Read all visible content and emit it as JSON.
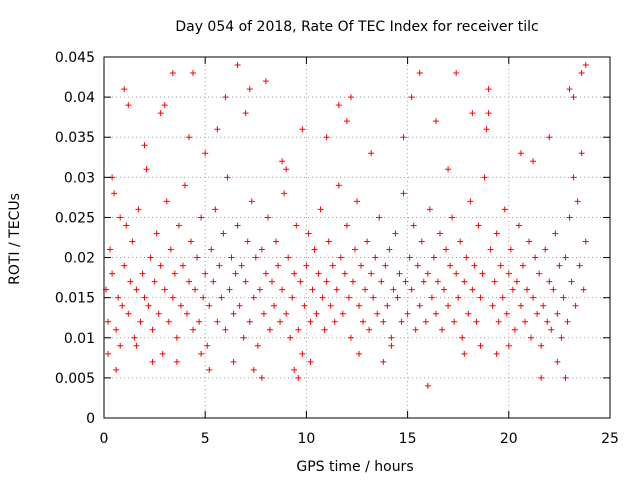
{
  "chart_data": {
    "type": "scatter",
    "title": "Day 054 of 2018, Rate Of TEC Index for receiver tilc",
    "xlabel": "GPS time / hours",
    "ylabel": "ROTI / TECUs",
    "xlim": [
      0,
      25
    ],
    "ylim": [
      0,
      0.045
    ],
    "xticks": [
      0,
      5,
      10,
      15,
      20,
      25
    ],
    "xtick_labels": [
      "0",
      "5",
      "10",
      "15",
      "20",
      "25"
    ],
    "yticks": [
      0,
      0.005,
      0.01,
      0.015,
      0.02,
      0.025,
      0.03,
      0.035,
      0.04,
      0.045
    ],
    "ytick_labels": [
      "0",
      "0.005",
      "0.01",
      "0.015",
      "0.02",
      "0.025",
      "0.03",
      "0.035",
      "0.04",
      "0.045"
    ],
    "grid": true,
    "marker": "+",
    "color": "#ff0000",
    "series": [
      {
        "name": "ROTI",
        "points": [
          [
            0.1,
            0.016
          ],
          [
            0.2,
            0.012
          ],
          [
            0.3,
            0.021
          ],
          [
            0.4,
            0.018
          ],
          [
            0.5,
            0.028
          ],
          [
            0.6,
            0.011
          ],
          [
            0.7,
            0.015
          ],
          [
            0.8,
            0.009
          ],
          [
            0.9,
            0.014
          ],
          [
            1.0,
            0.019
          ],
          [
            1.1,
            0.024
          ],
          [
            1.2,
            0.013
          ],
          [
            1.3,
            0.017
          ],
          [
            1.4,
            0.022
          ],
          [
            1.5,
            0.01
          ],
          [
            1.6,
            0.016
          ],
          [
            1.7,
            0.026
          ],
          [
            1.8,
            0.012
          ],
          [
            1.9,
            0.018
          ],
          [
            2.0,
            0.015
          ],
          [
            2.1,
            0.031
          ],
          [
            2.2,
            0.014
          ],
          [
            2.3,
            0.02
          ],
          [
            2.4,
            0.011
          ],
          [
            2.5,
            0.017
          ],
          [
            2.6,
            0.023
          ],
          [
            2.7,
            0.013
          ],
          [
            2.8,
            0.019
          ],
          [
            2.9,
            0.008
          ],
          [
            3.0,
            0.016
          ],
          [
            3.1,
            0.027
          ],
          [
            3.2,
            0.012
          ],
          [
            3.3,
            0.021
          ],
          [
            3.4,
            0.015
          ],
          [
            3.5,
            0.018
          ],
          [
            3.6,
            0.01
          ],
          [
            3.7,
            0.024
          ],
          [
            3.8,
            0.014
          ],
          [
            3.9,
            0.019
          ],
          [
            4.0,
            0.029
          ],
          [
            4.1,
            0.013
          ],
          [
            4.2,
            0.017
          ],
          [
            4.3,
            0.022
          ],
          [
            4.4,
            0.011
          ],
          [
            4.5,
            0.016
          ],
          [
            4.6,
            0.02
          ],
          [
            4.7,
            0.012
          ],
          [
            4.8,
            0.025
          ],
          [
            4.9,
            0.015
          ],
          [
            5.0,
            0.018
          ],
          [
            5.1,
            0.009
          ],
          [
            5.2,
            0.014
          ],
          [
            5.3,
            0.021
          ],
          [
            5.4,
            0.017
          ],
          [
            5.5,
            0.026
          ],
          [
            5.6,
            0.012
          ],
          [
            5.7,
            0.019
          ],
          [
            5.8,
            0.015
          ],
          [
            5.9,
            0.023
          ],
          [
            6.0,
            0.011
          ],
          [
            6.1,
            0.03
          ],
          [
            6.2,
            0.016
          ],
          [
            6.3,
            0.02
          ],
          [
            6.4,
            0.013
          ],
          [
            6.5,
            0.018
          ],
          [
            6.6,
            0.024
          ],
          [
            6.7,
            0.014
          ],
          [
            6.8,
            0.019
          ],
          [
            6.9,
            0.01
          ],
          [
            7.0,
            0.017
          ],
          [
            7.1,
            0.022
          ],
          [
            7.2,
            0.012
          ],
          [
            7.3,
            0.027
          ],
          [
            7.4,
            0.015
          ],
          [
            7.5,
            0.02
          ],
          [
            7.6,
            0.009
          ],
          [
            7.7,
            0.016
          ],
          [
            7.8,
            0.021
          ],
          [
            7.9,
            0.013
          ],
          [
            8.0,
            0.018
          ],
          [
            8.1,
            0.025
          ],
          [
            8.2,
            0.011
          ],
          [
            8.3,
            0.017
          ],
          [
            8.4,
            0.014
          ],
          [
            8.5,
            0.022
          ],
          [
            8.6,
            0.019
          ],
          [
            8.7,
            0.012
          ],
          [
            8.8,
            0.016
          ],
          [
            8.9,
            0.028
          ],
          [
            9.0,
            0.013
          ],
          [
            9.1,
            0.02
          ],
          [
            9.2,
            0.01
          ],
          [
            9.3,
            0.015
          ],
          [
            9.4,
            0.018
          ],
          [
            9.5,
            0.024
          ],
          [
            9.6,
            0.011
          ],
          [
            9.7,
            0.017
          ],
          [
            9.8,
            0.008
          ],
          [
            9.9,
            0.014
          ],
          [
            10.0,
            0.019
          ],
          [
            10.1,
            0.023
          ],
          [
            10.2,
            0.012
          ],
          [
            10.3,
            0.016
          ],
          [
            10.4,
            0.021
          ],
          [
            10.5,
            0.013
          ],
          [
            10.6,
            0.018
          ],
          [
            10.7,
            0.026
          ],
          [
            10.8,
            0.015
          ],
          [
            10.9,
            0.011
          ],
          [
            11.0,
            0.017
          ],
          [
            11.1,
            0.022
          ],
          [
            11.2,
            0.014
          ],
          [
            11.3,
            0.019
          ],
          [
            11.4,
            0.012
          ],
          [
            11.5,
            0.016
          ],
          [
            11.6,
            0.029
          ],
          [
            11.7,
            0.02
          ],
          [
            11.8,
            0.013
          ],
          [
            11.9,
            0.018
          ],
          [
            12.0,
            0.024
          ],
          [
            12.1,
            0.015
          ],
          [
            12.2,
            0.01
          ],
          [
            12.3,
            0.017
          ],
          [
            12.4,
            0.021
          ],
          [
            12.5,
            0.027
          ],
          [
            12.6,
            0.014
          ],
          [
            12.7,
            0.019
          ],
          [
            12.8,
            0.012
          ],
          [
            12.9,
            0.016
          ],
          [
            13.0,
            0.022
          ],
          [
            13.1,
            0.011
          ],
          [
            13.2,
            0.018
          ],
          [
            13.3,
            0.015
          ],
          [
            13.4,
            0.02
          ],
          [
            13.5,
            0.013
          ],
          [
            13.6,
            0.025
          ],
          [
            13.7,
            0.017
          ],
          [
            13.8,
            0.012
          ],
          [
            13.9,
            0.019
          ],
          [
            14.0,
            0.014
          ],
          [
            14.1,
            0.021
          ],
          [
            14.2,
            0.01
          ],
          [
            14.3,
            0.016
          ],
          [
            14.4,
            0.023
          ],
          [
            14.5,
            0.015
          ],
          [
            14.6,
            0.018
          ],
          [
            14.7,
            0.012
          ],
          [
            14.8,
            0.028
          ],
          [
            14.9,
            0.017
          ],
          [
            15.0,
            0.013
          ],
          [
            15.1,
            0.02
          ],
          [
            15.2,
            0.016
          ],
          [
            15.3,
            0.024
          ],
          [
            15.4,
            0.011
          ],
          [
            15.5,
            0.019
          ],
          [
            15.6,
            0.014
          ],
          [
            15.7,
            0.022
          ],
          [
            15.8,
            0.017
          ],
          [
            15.9,
            0.012
          ],
          [
            16.0,
            0.018
          ],
          [
            16.1,
            0.026
          ],
          [
            16.2,
            0.015
          ],
          [
            16.3,
            0.02
          ],
          [
            16.4,
            0.013
          ],
          [
            16.5,
            0.017
          ],
          [
            16.6,
            0.023
          ],
          [
            16.7,
            0.011
          ],
          [
            16.8,
            0.016
          ],
          [
            16.9,
            0.021
          ],
          [
            17.0,
            0.014
          ],
          [
            17.1,
            0.019
          ],
          [
            17.2,
            0.025
          ],
          [
            17.3,
            0.012
          ],
          [
            17.4,
            0.018
          ],
          [
            17.5,
            0.015
          ],
          [
            17.6,
            0.022
          ],
          [
            17.7,
            0.01
          ],
          [
            17.8,
            0.017
          ],
          [
            17.9,
            0.02
          ],
          [
            18.0,
            0.013
          ],
          [
            18.1,
            0.027
          ],
          [
            18.2,
            0.016
          ],
          [
            18.3,
            0.019
          ],
          [
            18.4,
            0.012
          ],
          [
            18.5,
            0.024
          ],
          [
            18.6,
            0.015
          ],
          [
            18.7,
            0.018
          ],
          [
            18.8,
            0.03
          ],
          [
            18.9,
            0.036
          ],
          [
            19.0,
            0.038
          ],
          [
            19.1,
            0.021
          ],
          [
            19.2,
            0.014
          ],
          [
            19.3,
            0.017
          ],
          [
            19.4,
            0.023
          ],
          [
            19.5,
            0.012
          ],
          [
            19.6,
            0.019
          ],
          [
            19.7,
            0.015
          ],
          [
            19.8,
            0.026
          ],
          [
            19.9,
            0.013
          ],
          [
            20.0,
            0.018
          ],
          [
            20.1,
            0.021
          ],
          [
            20.2,
            0.016
          ],
          [
            20.3,
            0.011
          ],
          [
            20.4,
            0.017
          ],
          [
            20.5,
            0.024
          ],
          [
            20.6,
            0.014
          ],
          [
            20.7,
            0.019
          ],
          [
            20.8,
            0.012
          ],
          [
            20.9,
            0.016
          ],
          [
            21.0,
            0.022
          ],
          [
            21.1,
            0.01
          ],
          [
            21.2,
            0.015
          ],
          [
            21.3,
            0.02
          ],
          [
            21.4,
            0.013
          ],
          [
            21.5,
            0.018
          ],
          [
            21.6,
            0.009
          ],
          [
            21.7,
            0.014
          ],
          [
            21.8,
            0.021
          ],
          [
            21.9,
            0.012
          ],
          [
            22.0,
            0.017
          ],
          [
            22.1,
            0.011
          ],
          [
            22.2,
            0.016
          ],
          [
            22.3,
            0.023
          ],
          [
            22.4,
            0.013
          ],
          [
            22.5,
            0.019
          ],
          [
            22.6,
            0.01
          ],
          [
            22.7,
            0.015
          ],
          [
            22.8,
            0.02
          ],
          [
            22.9,
            0.012
          ],
          [
            23.0,
            0.025
          ],
          [
            23.1,
            0.017
          ],
          [
            23.2,
            0.03
          ],
          [
            23.3,
            0.014
          ],
          [
            23.4,
            0.027
          ],
          [
            23.5,
            0.019
          ],
          [
            23.6,
            0.033
          ],
          [
            23.7,
            0.016
          ],
          [
            23.8,
            0.022
          ],
          [
            0.2,
            0.008
          ],
          [
            0.4,
            0.03
          ],
          [
            0.6,
            0.006
          ],
          [
            0.8,
            0.025
          ],
          [
            1.2,
            0.039
          ],
          [
            1.6,
            0.009
          ],
          [
            2.0,
            0.034
          ],
          [
            2.4,
            0.007
          ],
          [
            2.8,
            0.038
          ],
          [
            3.4,
            0.043
          ],
          [
            3.6,
            0.007
          ],
          [
            4.2,
            0.035
          ],
          [
            4.4,
            0.043
          ],
          [
            4.8,
            0.008
          ],
          [
            5.2,
            0.006
          ],
          [
            5.6,
            0.036
          ],
          [
            6.0,
            0.04
          ],
          [
            6.4,
            0.007
          ],
          [
            6.6,
            0.044
          ],
          [
            7.0,
            0.038
          ],
          [
            7.4,
            0.006
          ],
          [
            7.8,
            0.005
          ],
          [
            8.0,
            0.042
          ],
          [
            8.8,
            0.032
          ],
          [
            9.4,
            0.006
          ],
          [
            9.6,
            0.005
          ],
          [
            9.8,
            0.036
          ],
          [
            10.2,
            0.007
          ],
          [
            11.0,
            0.035
          ],
          [
            11.6,
            0.039
          ],
          [
            12.2,
            0.04
          ],
          [
            12.6,
            0.008
          ],
          [
            13.2,
            0.033
          ],
          [
            13.8,
            0.007
          ],
          [
            14.2,
            0.009
          ],
          [
            14.8,
            0.035
          ],
          [
            15.2,
            0.04
          ],
          [
            15.6,
            0.043
          ],
          [
            16.0,
            0.004
          ],
          [
            16.4,
            0.037
          ],
          [
            17.0,
            0.031
          ],
          [
            17.4,
            0.043
          ],
          [
            17.8,
            0.008
          ],
          [
            18.2,
            0.038
          ],
          [
            18.6,
            0.009
          ],
          [
            19.0,
            0.041
          ],
          [
            19.4,
            0.008
          ],
          [
            20.0,
            0.009
          ],
          [
            20.6,
            0.033
          ],
          [
            21.2,
            0.032
          ],
          [
            21.6,
            0.005
          ],
          [
            22.0,
            0.035
          ],
          [
            22.4,
            0.007
          ],
          [
            22.8,
            0.005
          ],
          [
            23.2,
            0.04
          ],
          [
            23.6,
            0.043
          ],
          [
            23.8,
            0.044
          ],
          [
            23.0,
            0.041
          ],
          [
            1.0,
            0.041
          ],
          [
            3.0,
            0.039
          ],
          [
            5.0,
            0.033
          ],
          [
            7.2,
            0.041
          ],
          [
            9.0,
            0.031
          ],
          [
            12.0,
            0.037
          ]
        ]
      }
    ]
  }
}
